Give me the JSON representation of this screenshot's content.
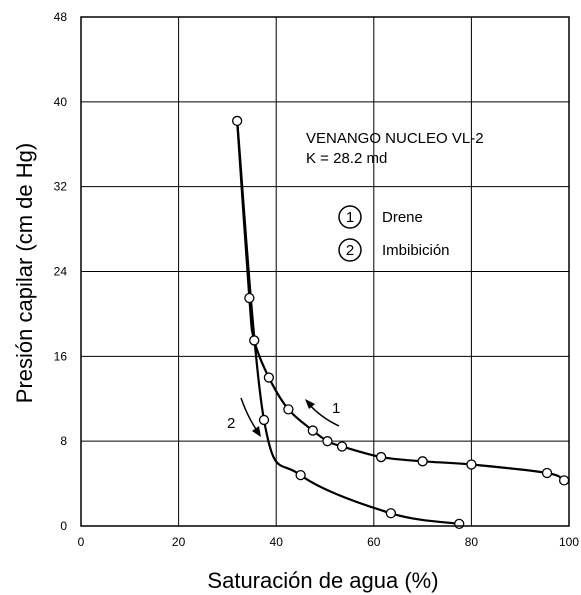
{
  "chart_data": {
    "type": "scatter",
    "xlabel": "Saturación de agua (%)",
    "ylabel": "Presión capilar (cm de Hg)",
    "xlim": [
      0,
      100
    ],
    "ylim": [
      0,
      48
    ],
    "xticks": [
      "0",
      "20",
      "40",
      "60",
      "80",
      "100"
    ],
    "yticks": [
      "0",
      "8",
      "16",
      "24",
      "32",
      "40",
      "48"
    ],
    "grid": true,
    "annotation": {
      "title": "VENANGO NUCLEO VL-2",
      "subtitle": "K = 28.2 md"
    },
    "legend": [
      {
        "number": "1",
        "label": "Drene"
      },
      {
        "number": "2",
        "label": "Imbibición"
      }
    ],
    "curve_labels": [
      "1",
      "2"
    ],
    "series": [
      {
        "id": "1",
        "points": [
          [
            32,
            38.2
          ],
          [
            34.5,
            21.5
          ],
          [
            35.5,
            17.5
          ],
          [
            38.5,
            14
          ],
          [
            42.5,
            11
          ],
          [
            47.5,
            9
          ],
          [
            50.5,
            8
          ],
          [
            53.5,
            7.5
          ],
          [
            61.5,
            6.5
          ],
          [
            70,
            6.1
          ],
          [
            80,
            5.8
          ],
          [
            95.5,
            5
          ],
          [
            99,
            4.3
          ]
        ]
      },
      {
        "id": "2",
        "points": [
          [
            37.5,
            10
          ],
          [
            45,
            4.8
          ],
          [
            63.5,
            1.2
          ],
          [
            77.5,
            0.2
          ]
        ]
      }
    ]
  }
}
